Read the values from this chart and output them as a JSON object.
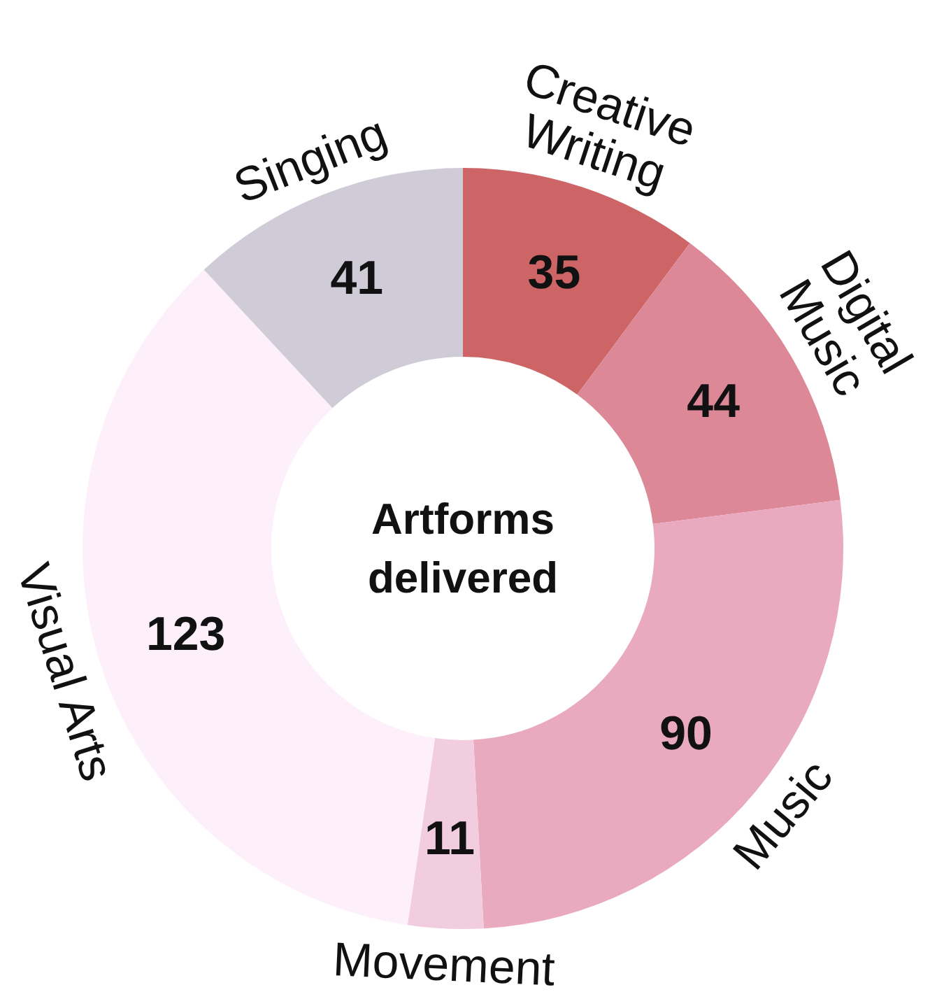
{
  "chart_data": {
    "type": "donut",
    "title": "Artforms delivered",
    "categories": [
      "Creative Writing",
      "Digital Music",
      "Music",
      "Movement",
      "Visual Arts",
      "Singing"
    ],
    "values": [
      35,
      44,
      90,
      11,
      123,
      41
    ],
    "colors": [
      "#cd6567",
      "#dc8896",
      "#e9a9bf",
      "#f2cde0",
      "#fdf0fb",
      "#cfcbd7"
    ],
    "data_labels": true,
    "legend": false
  }
}
